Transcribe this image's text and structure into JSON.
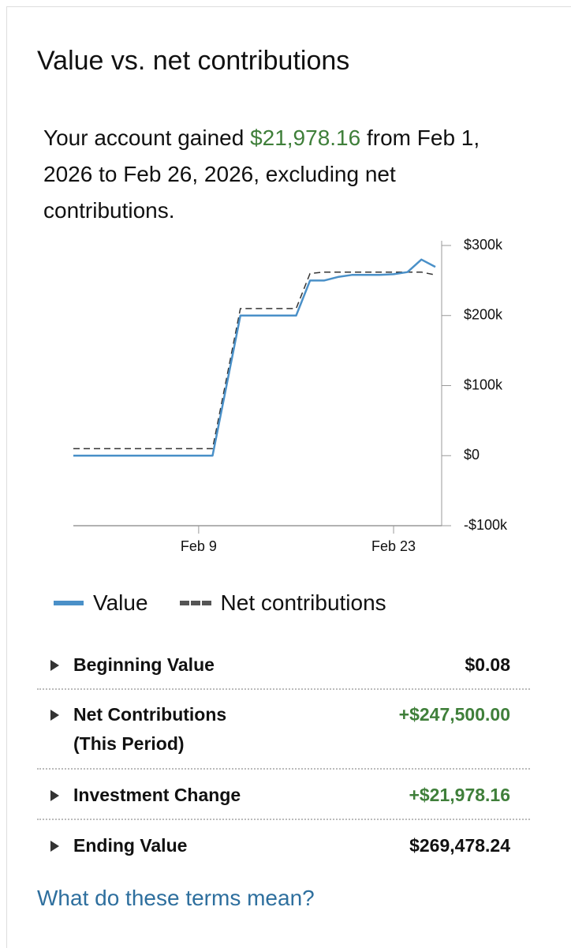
{
  "header": {
    "title": "Value vs. net contributions"
  },
  "summary": {
    "before": "Your account gained ",
    "amount": "$21,978.16",
    "after": " from Feb 1, 2026 to Feb 26, 2026, excluding net contributions.",
    "amount_color": "#3f7f3a"
  },
  "chart_data": {
    "type": "line",
    "categories": [
      null,
      null,
      null,
      null,
      null,
      null,
      null,
      null,
      null,
      "Feb 9",
      null,
      null,
      null,
      null,
      null,
      null,
      null,
      null,
      null,
      null,
      null,
      null,
      null,
      "Feb 23",
      null,
      null,
      null
    ],
    "series": [
      {
        "name": "Value",
        "color": "#4a90c8",
        "values": [
          0,
          0,
          0,
          0,
          0,
          0,
          0,
          0,
          0,
          0,
          0,
          100000,
          200000,
          200000,
          200000,
          200000,
          200000,
          250000,
          250000,
          255000,
          258000,
          258000,
          258000,
          259000,
          262000,
          280000,
          269478
        ]
      },
      {
        "name": "Net contributions",
        "color": "#333333",
        "dashed": true,
        "values": [
          10000,
          10000,
          10000,
          10000,
          10000,
          10000,
          10000,
          10000,
          10000,
          10000,
          10000,
          110000,
          210000,
          210000,
          210000,
          210000,
          210000,
          260000,
          262000,
          262000,
          262000,
          262000,
          262000,
          262000,
          262000,
          262000,
          258000
        ]
      }
    ],
    "ylim": [
      -100000,
      300000
    ],
    "yticks": [
      {
        "value": -100000,
        "label": "-$100k"
      },
      {
        "value": 0,
        "label": "$0"
      },
      {
        "value": 100000,
        "label": "$100k"
      },
      {
        "value": 200000,
        "label": "$200k"
      },
      {
        "value": 300000,
        "label": "$300k"
      }
    ],
    "y_axis_side": "right"
  },
  "rows": [
    {
      "label": "Beginning Value",
      "value": "$0.08",
      "color": "#111111"
    },
    {
      "label": "Net Contributions (This Period)",
      "value": "+$247,500.00",
      "color": "#3f7f3a"
    },
    {
      "label": "Investment Change",
      "value": "+$21,978.16",
      "color": "#3f7f3a"
    },
    {
      "label": "Ending Value",
      "value": "$269,478.24",
      "color": "#111111"
    }
  ],
  "link": "What do these terms mean?"
}
